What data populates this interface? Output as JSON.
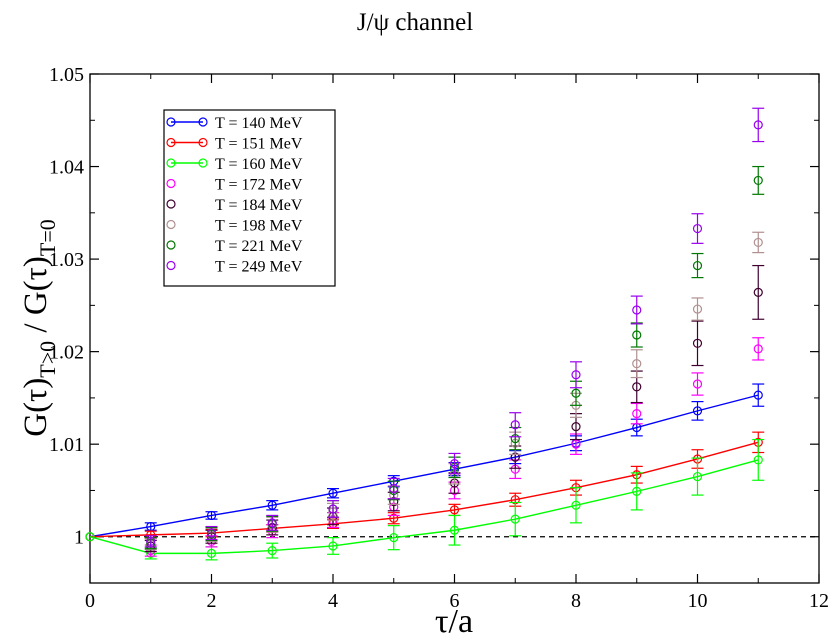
{
  "chart_data": {
    "type": "scatter",
    "title": "J/ψ channel",
    "xlabel": "τ/a",
    "ylabel": {
      "main": "G(τ)",
      "sub1": "T>0",
      "mid": " / G(τ)",
      "sub2": "T=0"
    },
    "xlim": [
      0,
      12
    ],
    "ylim": [
      0.995,
      1.05
    ],
    "xticks": [
      0,
      2,
      4,
      6,
      8,
      10,
      12
    ],
    "yticks": [
      1,
      1.01,
      1.02,
      1.03,
      1.04,
      1.05
    ],
    "xtick_labels": [
      "0",
      "2",
      "4",
      "6",
      "8",
      "10",
      "12"
    ],
    "ytick_labels": [
      "1",
      "1.01",
      "1.02",
      "1.03",
      "1.04",
      "1.05"
    ],
    "reference_line": {
      "y": 1.0,
      "style": "dashed"
    },
    "legend_position": "top-left",
    "series": [
      {
        "name": "T = 140 MeV",
        "color": "#0000ff",
        "line": true,
        "x": [
          0,
          1,
          2,
          3,
          4,
          5,
          6,
          7,
          8,
          9,
          10,
          11
        ],
        "y": [
          1.0,
          1.0011,
          1.0023,
          1.0034,
          1.0047,
          1.006,
          1.0073,
          1.0086,
          1.0101,
          1.0118,
          1.0136,
          1.0153
        ],
        "err": [
          0,
          0.0004,
          0.0004,
          0.0005,
          0.0005,
          0.0006,
          0.0007,
          0.0007,
          0.0008,
          0.0009,
          0.001,
          0.0012
        ]
      },
      {
        "name": "T = 151 MeV",
        "color": "#ff0000",
        "line": true,
        "x": [
          0,
          1,
          2,
          3,
          4,
          5,
          6,
          7,
          8,
          9,
          10,
          11
        ],
        "y": [
          1.0,
          1.0002,
          1.0004,
          1.0009,
          1.0014,
          1.002,
          1.0029,
          1.004,
          1.0053,
          1.0067,
          1.0084,
          1.0102
        ],
        "err": [
          0,
          0.0004,
          0.0004,
          0.0004,
          0.0005,
          0.0006,
          0.0006,
          0.0007,
          0.0008,
          0.0009,
          0.001,
          0.0011
        ]
      },
      {
        "name": "T = 160 MeV",
        "color": "#00ff00",
        "line": true,
        "x": [
          0,
          1,
          2,
          3,
          4,
          5,
          6,
          7,
          8,
          9,
          10,
          11
        ],
        "y": [
          1.0,
          0.9982,
          0.9982,
          0.9985,
          0.999,
          0.9999,
          1.0007,
          1.0019,
          1.0034,
          1.0049,
          1.0065,
          1.0083
        ],
        "err": [
          0,
          0.0006,
          0.0007,
          0.0008,
          0.0009,
          0.0013,
          0.0016,
          0.0018,
          0.0019,
          0.002,
          0.002,
          0.0022
        ]
      },
      {
        "name": "T = 172 MeV",
        "color": "#ff00ff",
        "line": false,
        "x": [
          1,
          2,
          3,
          4,
          5,
          6,
          7,
          8,
          9,
          10,
          11
        ],
        "y": [
          0.9985,
          0.9995,
          1.0006,
          1.0018,
          1.0032,
          1.005,
          1.0073,
          1.01,
          1.0133,
          1.0165,
          1.0203
        ],
        "err": [
          0.0006,
          0.0006,
          0.0007,
          0.0008,
          0.0009,
          0.0009,
          0.001,
          0.0011,
          0.0011,
          0.0012,
          0.0012
        ]
      },
      {
        "name": "T = 184 MeV",
        "color": "#3f002f",
        "line": false,
        "x": [
          1,
          2,
          3,
          4,
          5,
          6,
          7,
          8,
          9,
          10,
          11
        ],
        "y": [
          0.999,
          1.0,
          1.001,
          1.0022,
          1.0038,
          1.0058,
          1.0086,
          1.0119,
          1.0162,
          1.0209,
          1.0264
        ],
        "err": [
          0.0006,
          0.0007,
          0.0008,
          0.0009,
          0.001,
          0.0011,
          0.0012,
          0.0014,
          0.0017,
          0.0024,
          0.0029
        ]
      },
      {
        "name": "T = 198 MeV",
        "color": "#b09090",
        "line": false,
        "x": [
          1,
          2,
          3,
          4,
          5,
          6,
          7,
          8,
          9,
          10,
          11
        ],
        "y": [
          0.9992,
          1.0002,
          1.0013,
          1.0027,
          1.0045,
          1.0068,
          1.0101,
          1.0142,
          1.0187,
          1.0246,
          1.0318
        ],
        "err": [
          0.0006,
          0.0007,
          0.0008,
          0.0009,
          0.001,
          0.0011,
          0.0012,
          0.0013,
          0.0015,
          0.0012,
          0.0011
        ]
      },
      {
        "name": "T = 221 MeV",
        "color": "#007700",
        "line": false,
        "x": [
          1,
          2,
          3,
          4,
          5,
          6,
          7,
          8,
          9,
          10,
          11
        ],
        "y": [
          0.9993,
          1.0003,
          1.0014,
          1.003,
          1.005,
          1.0075,
          1.0106,
          1.0155,
          1.0218,
          1.0293,
          1.0385
        ],
        "err": [
          0.0006,
          0.0007,
          0.0008,
          0.0009,
          0.001,
          0.0011,
          0.0012,
          0.0013,
          0.0013,
          0.0013,
          0.0015
        ]
      },
      {
        "name": "T = 249 MeV",
        "color": "#9900ee",
        "line": false,
        "x": [
          1,
          2,
          3,
          4,
          5,
          6,
          7,
          8,
          9,
          10,
          11
        ],
        "y": [
          0.9995,
          1.0004,
          1.0015,
          1.003,
          1.0052,
          1.0079,
          1.0121,
          1.0175,
          1.0245,
          1.0333,
          1.0445
        ],
        "err": [
          0.0006,
          0.0007,
          0.0008,
          0.0009,
          0.0011,
          0.0011,
          0.0013,
          0.0014,
          0.0015,
          0.0016,
          0.0018
        ]
      }
    ]
  }
}
